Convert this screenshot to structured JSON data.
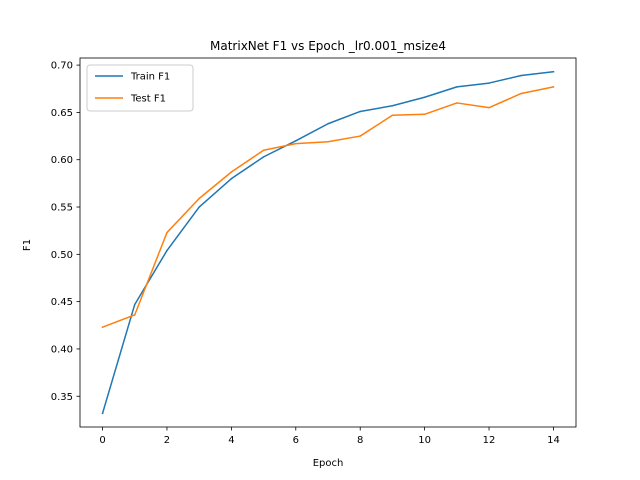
{
  "chart_data": {
    "type": "line",
    "title": "MatrixNet F1 vs Epoch _lr0.001_msize4",
    "xlabel": "Epoch",
    "ylabel": "F1",
    "xlim": [
      -0.7,
      14.7
    ],
    "ylim": [
      0.3175,
      0.7075
    ],
    "x": [
      0,
      1,
      2,
      3,
      4,
      5,
      6,
      7,
      8,
      9,
      10,
      11,
      12,
      13,
      14
    ],
    "xticks": [
      0,
      2,
      4,
      6,
      8,
      10,
      12,
      14
    ],
    "yticks": [
      0.35,
      0.4,
      0.45,
      0.5,
      0.55,
      0.6,
      0.65,
      0.7
    ],
    "xtick_labels": [
      "0",
      "2",
      "4",
      "6",
      "8",
      "10",
      "12",
      "14"
    ],
    "ytick_labels": [
      "0.35",
      "0.40",
      "0.45",
      "0.50",
      "0.55",
      "0.60",
      "0.65",
      "0.70"
    ],
    "grid": false,
    "legend_position": "top-left",
    "series": [
      {
        "name": "Train F1",
        "color": "#1f77b4",
        "values": [
          0.332,
          0.447,
          0.504,
          0.55,
          0.58,
          0.603,
          0.62,
          0.638,
          0.651,
          0.657,
          0.666,
          0.677,
          0.681,
          0.689,
          0.693
        ]
      },
      {
        "name": "Test F1",
        "color": "#ff7f0e",
        "values": [
          0.423,
          0.436,
          0.523,
          0.559,
          0.587,
          0.61,
          0.617,
          0.619,
          0.625,
          0.647,
          0.648,
          0.66,
          0.655,
          0.67,
          0.677
        ]
      }
    ]
  }
}
